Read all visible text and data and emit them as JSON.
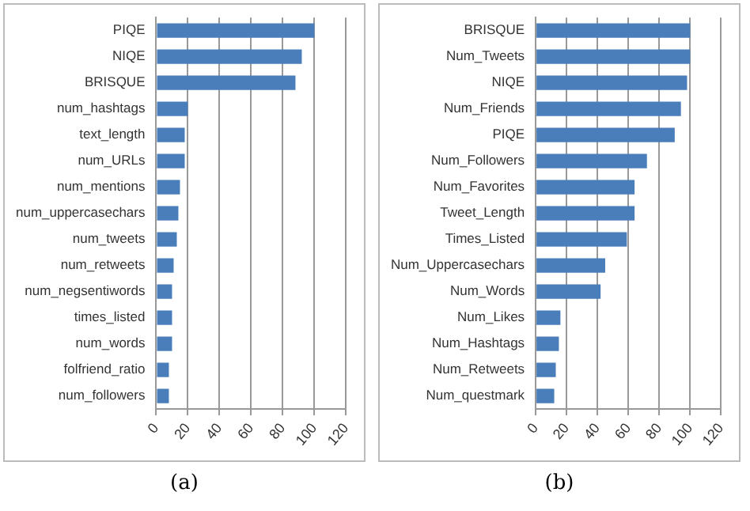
{
  "chart_data": [
    {
      "type": "bar",
      "orientation": "horizontal",
      "categories": [
        "PIQE",
        "NIQE",
        "BRISQUE",
        "num_hashtags",
        "text_length",
        "num_URLs",
        "num_mentions",
        "num_uppercasechars",
        "num_tweets",
        "num_retweets",
        "num_negsentiwords",
        "times_listed",
        "num_words",
        "folfriend_ratio",
        "num_followers"
      ],
      "values": [
        100,
        92,
        88,
        20,
        18,
        18,
        15,
        14,
        13,
        11,
        10,
        10,
        10,
        8,
        8
      ],
      "color": "#4a7ebb",
      "xlim": [
        0,
        120
      ],
      "xticks": [
        0,
        20,
        40,
        60,
        80,
        100,
        120
      ],
      "grid": "x",
      "annotations": [
        "(a)"
      ]
    },
    {
      "type": "bar",
      "orientation": "horizontal",
      "categories": [
        "BRISQUE",
        "Num_Tweets",
        "NIQE",
        "Num_Friends",
        "PIQE",
        "Num_Followers",
        "Num_Favorites",
        "Tweet_Length",
        "Times_Listed",
        "Num_Uppercasechars",
        "Num_Words",
        "Num_Likes",
        "Num_Hashtags",
        "Num_Retweets",
        "Num_questmark"
      ],
      "values": [
        100,
        100,
        98,
        94,
        90,
        72,
        64,
        64,
        59,
        45,
        42,
        16,
        15,
        13,
        12
      ],
      "color": "#4a7ebb",
      "xlim": [
        0,
        120
      ],
      "xticks": [
        0,
        20,
        40,
        60,
        80,
        100,
        120
      ],
      "grid": "x",
      "annotations": [
        "(b)"
      ]
    }
  ]
}
